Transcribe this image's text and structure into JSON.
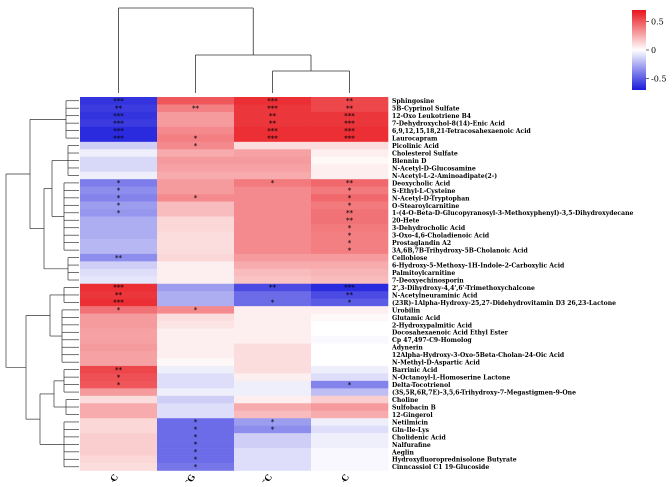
{
  "chart_data": {
    "type": "heatmap",
    "title": "",
    "columns": [
      "HDL-C",
      "TG",
      "TC",
      "LDL-C"
    ],
    "color_scale": {
      "min": -0.7,
      "max": 0.7,
      "ticks": [
        0.5,
        0,
        -0.5
      ],
      "tick_labels": [
        "0.5",
        "0",
        "-0.5"
      ],
      "low_color": "#1a1adb",
      "mid_color": "#ffffff",
      "high_color": "#e8141a"
    },
    "column_dendrogram": "((HDL-C),(TG,(TC,LDL-C)))",
    "rows": [
      {
        "name": "Sphingosine",
        "values": [
          -0.62,
          0.5,
          0.62,
          0.55
        ],
        "sig": [
          "***",
          "",
          "***",
          "**"
        ]
      },
      {
        "name": "5B-Cyprinol Sulfate",
        "values": [
          -0.6,
          0.38,
          0.6,
          0.55
        ],
        "sig": [
          "**",
          "**",
          "***",
          "**"
        ]
      },
      {
        "name": "12-Oxo Leukotriene B4",
        "values": [
          -0.62,
          0.3,
          0.6,
          0.6
        ],
        "sig": [
          "***",
          "",
          "**",
          "***"
        ]
      },
      {
        "name": "7-Dehydroxychol-8(14)-Enic Acid",
        "values": [
          -0.6,
          0.3,
          0.6,
          0.6
        ],
        "sig": [
          "***",
          "",
          "**",
          "***"
        ]
      },
      {
        "name": "6,9,12,15,18,21-Tetracosahexaenoic Acid",
        "values": [
          -0.65,
          0.35,
          0.62,
          0.62
        ],
        "sig": [
          "***",
          "",
          "***",
          "***"
        ]
      },
      {
        "name": "Laurocapram",
        "values": [
          -0.65,
          0.38,
          0.62,
          0.62
        ],
        "sig": [
          "***",
          "*",
          "***",
          "***"
        ]
      },
      {
        "name": "Picolinic Acid",
        "values": [
          -0.15,
          0.35,
          0.1,
          0.1
        ],
        "sig": [
          "",
          "*",
          "",
          ""
        ]
      },
      {
        "name": "Cholesterol Sulfate",
        "values": [
          -0.05,
          0.25,
          0.28,
          0.05
        ],
        "sig": [
          "",
          "",
          "",
          ""
        ]
      },
      {
        "name": "Blennin D",
        "values": [
          -0.12,
          0.3,
          0.3,
          0.02
        ],
        "sig": [
          "",
          "",
          "",
          ""
        ]
      },
      {
        "name": "N-Acetyl-D-Glucosamine",
        "values": [
          -0.12,
          0.28,
          0.28,
          0.05
        ],
        "sig": [
          "",
          "",
          "",
          ""
        ]
      },
      {
        "name": "N-Acetyl-L-2-Aminoadipate(2-)",
        "values": [
          -0.05,
          0.25,
          0.25,
          0.05
        ],
        "sig": [
          "",
          "",
          "",
          ""
        ]
      },
      {
        "name": "Deoxycholic Acid",
        "values": [
          -0.4,
          0.3,
          0.4,
          0.45
        ],
        "sig": [
          "*",
          "",
          "*",
          "**"
        ]
      },
      {
        "name": "S-Ethyl-L-Cysteine",
        "values": [
          -0.35,
          0.3,
          0.35,
          0.4
        ],
        "sig": [
          "*",
          "",
          "",
          "*"
        ]
      },
      {
        "name": "N-Acetyl-D-Tryptophan",
        "values": [
          -0.38,
          0.35,
          0.35,
          0.45
        ],
        "sig": [
          "*",
          "*",
          "",
          "*"
        ]
      },
      {
        "name": "O-Stearoylcarnitine",
        "values": [
          -0.3,
          0.2,
          0.35,
          0.4
        ],
        "sig": [
          "*",
          "",
          "",
          "*"
        ]
      },
      {
        "name": "1-(4-O-Beta-D-Glucopyranosyl-3-Methoxyphenyl)-3,5-Dihydroxydecane",
        "values": [
          -0.32,
          0.2,
          0.35,
          0.42
        ],
        "sig": [
          "*",
          "",
          "",
          "**"
        ]
      },
      {
        "name": "20-Hete",
        "values": [
          -0.25,
          0.12,
          0.35,
          0.42
        ],
        "sig": [
          "",
          "",
          "",
          "**"
        ]
      },
      {
        "name": "3-Dehydrocholic Acid",
        "values": [
          -0.25,
          0.12,
          0.35,
          0.4
        ],
        "sig": [
          "",
          "",
          "",
          "*"
        ]
      },
      {
        "name": "3-Oxo-4,6-Choladienoic Acid",
        "values": [
          -0.25,
          0.1,
          0.35,
          0.38
        ],
        "sig": [
          "",
          "",
          "",
          "*"
        ]
      },
      {
        "name": "Prostaglandin A2",
        "values": [
          -0.22,
          0.1,
          0.35,
          0.38
        ],
        "sig": [
          "",
          "",
          "",
          "*"
        ]
      },
      {
        "name": "3A,6B,7B-Trihydroxy-5B-Cholanoic Acid",
        "values": [
          -0.22,
          0.1,
          0.35,
          0.38
        ],
        "sig": [
          "",
          "",
          "",
          "*"
        ]
      },
      {
        "name": "Cellobiose",
        "values": [
          -0.35,
          0.12,
          0.3,
          0.3
        ],
        "sig": [
          "**",
          "",
          "",
          ""
        ]
      },
      {
        "name": "6-Hydroxy-5-Methoxy-1H-Indole-2-Carboxylic Acid",
        "values": [
          -0.15,
          0.05,
          0.25,
          0.25
        ],
        "sig": [
          "",
          "",
          "",
          ""
        ]
      },
      {
        "name": "Palmitoylcarnitine",
        "values": [
          -0.1,
          0.05,
          0.2,
          0.22
        ],
        "sig": [
          "",
          "",
          "",
          ""
        ]
      },
      {
        "name": "7-Deoxyechinosporin",
        "values": [
          -0.08,
          0.05,
          0.18,
          0.2
        ],
        "sig": [
          "",
          "",
          "",
          ""
        ]
      },
      {
        "name": "2',3-Dihydroxy-4,4',6'-Trimethoxychalcone",
        "values": [
          0.62,
          -0.3,
          -0.55,
          -0.65
        ],
        "sig": [
          "***",
          "",
          "**",
          "***"
        ]
      },
      {
        "name": "N-Acetylneuraminic Acid",
        "values": [
          0.6,
          -0.25,
          -0.45,
          -0.55
        ],
        "sig": [
          "**",
          "",
          "",
          "**"
        ]
      },
      {
        "name": "(23R)-1Alpha-Hydroxy-25,27-Didehydrovitamin D3 26,23-Lactone",
        "values": [
          0.62,
          -0.25,
          -0.45,
          -0.5
        ],
        "sig": [
          "***",
          "",
          "*",
          "*"
        ]
      },
      {
        "name": "Urobilin",
        "values": [
          0.42,
          0.35,
          0.05,
          0.05
        ],
        "sig": [
          "*",
          "*",
          "",
          ""
        ]
      },
      {
        "name": "Glutamic Acid",
        "values": [
          0.3,
          0.1,
          0.05,
          0.02
        ],
        "sig": [
          "",
          "",
          "",
          ""
        ]
      },
      {
        "name": "2-Hydroxypalmitic Acid",
        "values": [
          0.3,
          0.08,
          0.05,
          0.0
        ],
        "sig": [
          "",
          "",
          "",
          ""
        ]
      },
      {
        "name": "Docosahexaenoic Acid Ethyl Ester",
        "values": [
          0.28,
          0.05,
          0.05,
          0.0
        ],
        "sig": [
          "",
          "",
          "",
          ""
        ]
      },
      {
        "name": "Cp 47,497-C9-Homolog",
        "values": [
          0.28,
          0.05,
          0.05,
          -0.02
        ],
        "sig": [
          "",
          "",
          "",
          ""
        ]
      },
      {
        "name": "Adynerin",
        "values": [
          0.3,
          0.05,
          0.1,
          0.0
        ],
        "sig": [
          "",
          "",
          "",
          ""
        ]
      },
      {
        "name": "12Alpha-Hydroxy-3-Oxo-5Beta-Cholan-24-Oic Acid",
        "values": [
          0.28,
          0.05,
          0.1,
          0.0
        ],
        "sig": [
          "",
          "",
          "",
          ""
        ]
      },
      {
        "name": "N-Methyl-D-Aspartic Acid",
        "values": [
          0.28,
          0.02,
          0.1,
          0.0
        ],
        "sig": [
          "",
          "",
          "",
          ""
        ]
      },
      {
        "name": "Barrinic Acid",
        "values": [
          0.55,
          -0.05,
          0.1,
          -0.05
        ],
        "sig": [
          "**",
          "",
          "",
          ""
        ]
      },
      {
        "name": "N-Octanoyl-L-Homoserine Lactone",
        "values": [
          0.52,
          -0.1,
          0.05,
          -0.1
        ],
        "sig": [
          "*",
          "",
          "",
          ""
        ]
      },
      {
        "name": "Delta-Tocotrienol",
        "values": [
          0.5,
          -0.1,
          -0.05,
          -0.38
        ],
        "sig": [
          "*",
          "",
          "",
          "*"
        ]
      },
      {
        "name": "(3S,5R,6R,7E)-3,5,6-Trihydroxy-7-Megastigmen-9-One",
        "values": [
          0.3,
          -0.05,
          -0.05,
          -0.2
        ],
        "sig": [
          "",
          "",
          "",
          ""
        ]
      },
      {
        "name": "Choline",
        "values": [
          0.1,
          -0.15,
          0.05,
          0.15
        ],
        "sig": [
          "",
          "",
          "",
          ""
        ]
      },
      {
        "name": "Sulfobacin B",
        "values": [
          0.25,
          -0.1,
          0.25,
          0.3
        ],
        "sig": [
          "",
          "",
          "",
          ""
        ]
      },
      {
        "name": "12-Gingerol",
        "values": [
          0.25,
          -0.1,
          0.2,
          0.25
        ],
        "sig": [
          "",
          "",
          "",
          ""
        ]
      },
      {
        "name": "Netilmicin",
        "values": [
          0.12,
          -0.45,
          -0.3,
          -0.05
        ],
        "sig": [
          "",
          "*",
          "*",
          ""
        ]
      },
      {
        "name": "Gln-Ile-Lys",
        "values": [
          0.12,
          -0.45,
          -0.35,
          -0.1
        ],
        "sig": [
          "",
          "*",
          "*",
          ""
        ]
      },
      {
        "name": "Cholidenic Acid",
        "values": [
          0.15,
          -0.45,
          -0.15,
          -0.05
        ],
        "sig": [
          "",
          "*",
          "",
          ""
        ]
      },
      {
        "name": "Nalfurafine",
        "values": [
          0.15,
          -0.45,
          -0.15,
          -0.05
        ],
        "sig": [
          "",
          "*",
          "",
          ""
        ]
      },
      {
        "name": "Aeglin",
        "values": [
          0.15,
          -0.45,
          -0.1,
          -0.02
        ],
        "sig": [
          "",
          "*",
          "",
          ""
        ]
      },
      {
        "name": "Hydroxyfluoroprednisolone Butyrate",
        "values": [
          0.12,
          -0.45,
          -0.1,
          -0.02
        ],
        "sig": [
          "",
          "*",
          "",
          ""
        ]
      },
      {
        "name": "Cinncassiol C1 19-Glucoside",
        "values": [
          0.1,
          -0.42,
          -0.1,
          -0.02
        ],
        "sig": [
          "",
          "*",
          "",
          ""
        ]
      }
    ]
  }
}
